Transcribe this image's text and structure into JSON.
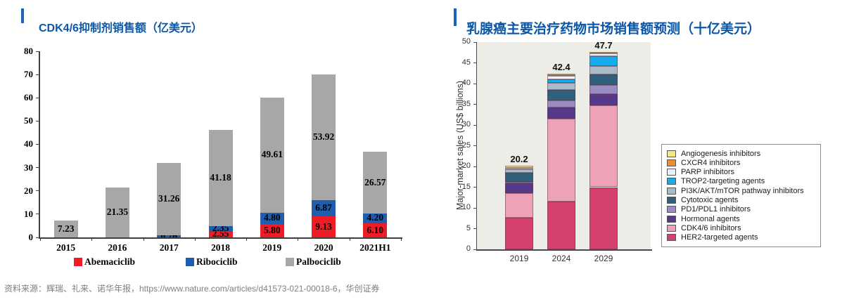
{
  "page": {
    "accent_color": "#0b57a8",
    "source_note": "资料来源：辉瑞、礼来、诺华年报，https://www.nature.com/articles/d41573-021-00018-6，华创证券"
  },
  "chart_data": [
    {
      "type": "bar",
      "stacked": true,
      "title": "CDK4/6抑制剂销售额（亿美元）",
      "xlabel": "",
      "ylabel": "",
      "ylim": [
        0,
        80
      ],
      "ytick_step": 10,
      "grid": false,
      "legend_position": "bottom",
      "categories": [
        "2015",
        "2016",
        "2017",
        "2018",
        "2019",
        "2020",
        "2021H1"
      ],
      "series": [
        {
          "name": "Abemaciclib",
          "color": "#ee1c24",
          "values": [
            0,
            0,
            0,
            2.55,
            5.8,
            9.13,
            6.1
          ],
          "labels": [
            "",
            "",
            "",
            "2.55",
            "5.80",
            "9.13",
            "6.10"
          ]
        },
        {
          "name": "Ribociclib",
          "color": "#1f5dad",
          "values": [
            0,
            0,
            0.76,
            2.35,
            4.8,
            6.87,
            4.2
          ],
          "labels": [
            "",
            "",
            "0.76",
            "2.35",
            "4.80",
            "6.87",
            "4.20"
          ]
        },
        {
          "name": "Palbociclib",
          "color": "#a7a7a7",
          "values": [
            7.23,
            21.35,
            31.26,
            41.18,
            49.61,
            53.92,
            26.57
          ],
          "labels": [
            "7.23",
            "21.35",
            "31.26",
            "41.18",
            "49.61",
            "53.92",
            "26.57"
          ]
        }
      ]
    },
    {
      "type": "bar",
      "stacked": true,
      "title": "乳腺癌主要治疗药物市场销售额预测（十亿美元）",
      "xlabel": "",
      "ylabel": "Major-market sales (US$ billions)",
      "ylim": [
        0,
        50
      ],
      "ytick_step": 5,
      "grid": false,
      "legend_position": "right",
      "plot_bg": "#ecede7",
      "categories": [
        "2019",
        "2024",
        "2029"
      ],
      "totals": [
        "20.2",
        "42.4",
        "47.7"
      ],
      "series": [
        {
          "name": "HER2-targeted agents",
          "color": "#d5406f",
          "values": [
            7.7,
            11.5,
            15.0
          ]
        },
        {
          "name": "CDK4/6 inhibitors",
          "color": "#eda2b7",
          "values": [
            5.9,
            20.1,
            19.8
          ]
        },
        {
          "name": "Hormonal agents",
          "color": "#57398b",
          "values": [
            2.4,
            2.6,
            2.6
          ]
        },
        {
          "name": "PD1/PDL1 inhibitors",
          "color": "#9a8cc3",
          "values": [
            0.3,
            1.7,
            2.2
          ]
        },
        {
          "name": "Cytotoxic agents",
          "color": "#2f617f",
          "values": [
            2.2,
            2.5,
            2.6
          ]
        },
        {
          "name": "PI3K/AKT/mTOR pathway inhibitors",
          "color": "#a9bbca",
          "values": [
            0.9,
            1.7,
            2.0
          ]
        },
        {
          "name": "TROP2-targeting agents",
          "color": "#16aceb",
          "values": [
            0,
            1.0,
            2.4
          ]
        },
        {
          "name": "PARP inhibitors",
          "color": "#e9f2fb",
          "values": [
            0.3,
            0.8,
            0.7
          ]
        },
        {
          "name": "CXCR4 inhibitors",
          "color": "#ec8b30",
          "values": [
            0,
            0.2,
            0.2
          ]
        },
        {
          "name": "Angiogenesis inhibitors",
          "color": "#efe97e",
          "values": [
            0.5,
            0.3,
            0.2
          ]
        }
      ]
    }
  ]
}
